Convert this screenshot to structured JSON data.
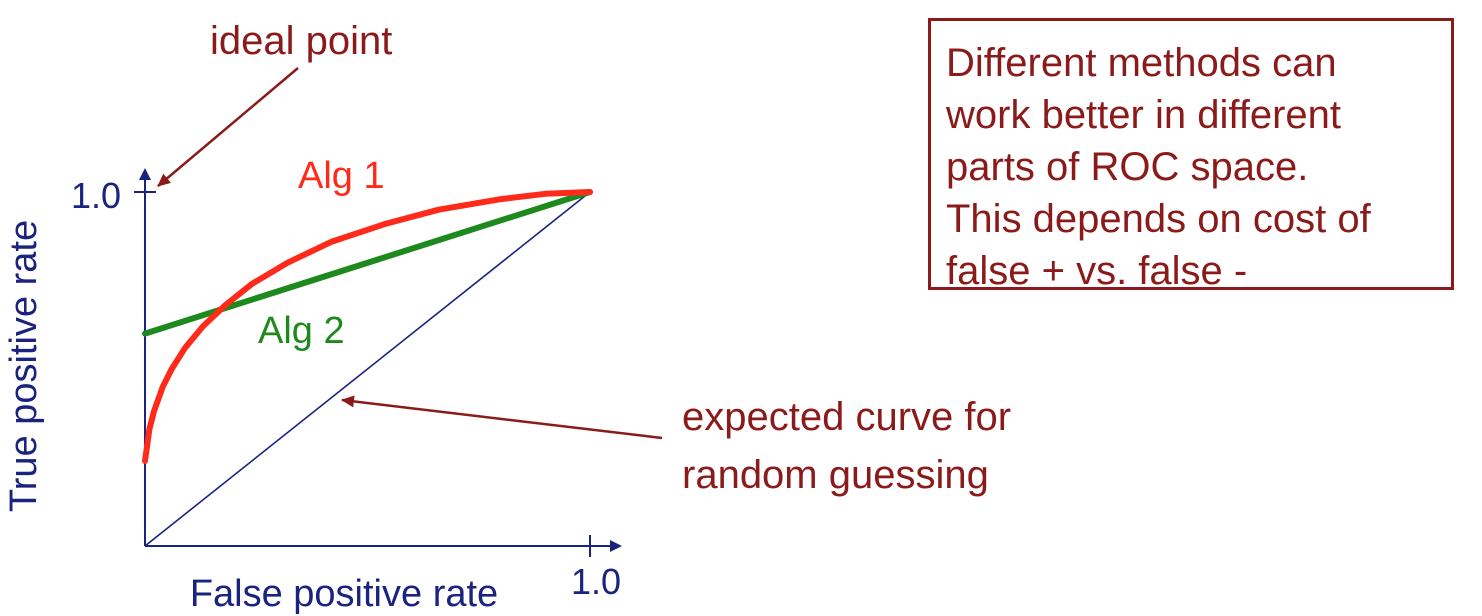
{
  "chart_data": {
    "type": "line",
    "xlabel": "False positive rate",
    "ylabel": "True positive rate",
    "xlim": [
      0,
      1
    ],
    "ylim": [
      0,
      1
    ],
    "x_tick_labels": [
      {
        "value": 1.0,
        "label": "1.0"
      }
    ],
    "y_tick_labels": [
      {
        "value": 1.0,
        "label": "1.0"
      }
    ],
    "grid": false,
    "series": [
      {
        "name": "Alg 1",
        "color": "#ff2a1a",
        "points": [
          [
            0.0,
            0.24
          ],
          [
            0.01,
            0.33
          ],
          [
            0.02,
            0.38
          ],
          [
            0.04,
            0.45
          ],
          [
            0.06,
            0.5
          ],
          [
            0.09,
            0.56
          ],
          [
            0.13,
            0.62
          ],
          [
            0.18,
            0.68
          ],
          [
            0.24,
            0.74
          ],
          [
            0.32,
            0.8
          ],
          [
            0.42,
            0.86
          ],
          [
            0.54,
            0.91
          ],
          [
            0.66,
            0.95
          ],
          [
            0.8,
            0.98
          ],
          [
            0.9,
            0.995
          ],
          [
            1.0,
            1.0
          ]
        ]
      },
      {
        "name": "Alg 2",
        "color": "#1e8a1e",
        "points": [
          [
            0.0,
            0.6
          ],
          [
            1.0,
            1.0
          ]
        ]
      },
      {
        "name": "random guessing",
        "color": "#1a237e",
        "points": [
          [
            0.0,
            0.0
          ],
          [
            1.0,
            1.0
          ]
        ]
      }
    ],
    "annotations": {
      "ideal_point": {
        "text": "ideal point",
        "points_to": [
          0,
          1
        ]
      },
      "random": {
        "text_lines": [
          "expected curve for",
          "random guessing"
        ],
        "points_to": [
          0.45,
          0.45
        ]
      }
    }
  },
  "note": {
    "lines": [
      "Different methods can",
      "work better in different",
      "parts of ROC space.",
      "This depends on cost of",
      "false + vs. false -"
    ]
  },
  "colors": {
    "axis": "#1a237e",
    "annotation": "#8b1a1a"
  }
}
